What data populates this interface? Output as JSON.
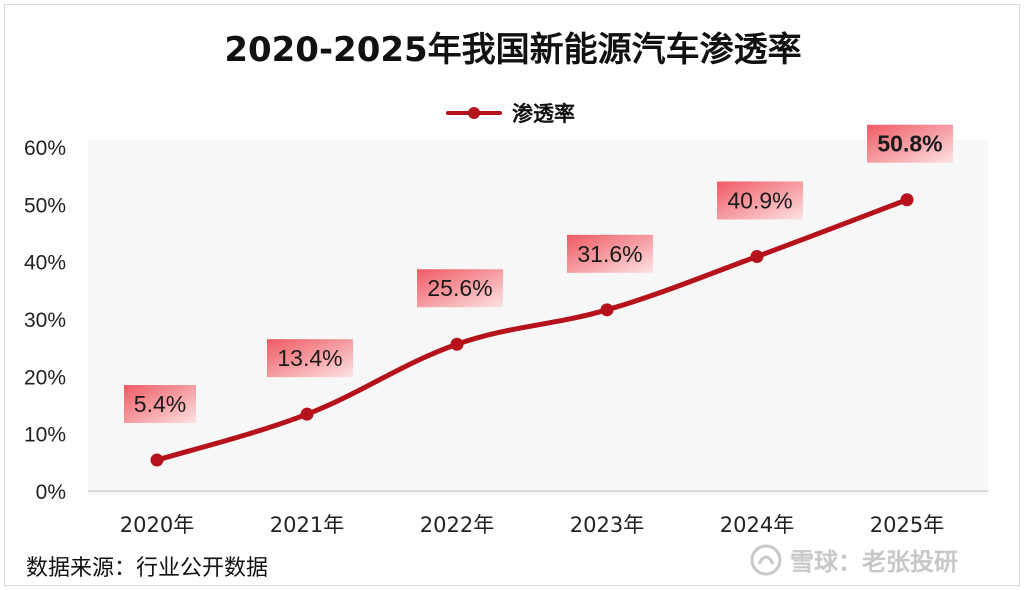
{
  "title": "2020-2025年我国新能源汽车渗透率",
  "legend": {
    "label": "渗透率"
  },
  "source": "数据来源：行业公开数据",
  "watermark": "雪球：老张投研",
  "colors": {
    "line": "#b5121b",
    "label_box": "#f8b9bd",
    "label_edge": "#f07f86"
  },
  "chart_data": {
    "type": "line",
    "title": "2020-2025年我国新能源汽车渗透率",
    "xlabel": "",
    "ylabel": "",
    "categories": [
      "2020年",
      "2021年",
      "2022年",
      "2023年",
      "2024年",
      "2025年"
    ],
    "series": [
      {
        "name": "渗透率",
        "values": [
          5.4,
          13.4,
          25.6,
          31.6,
          40.9,
          50.8
        ]
      }
    ],
    "data_labels": [
      "5.4%",
      "13.4%",
      "25.6%",
      "31.6%",
      "40.9%",
      "50.8%"
    ],
    "ylim": [
      0,
      60
    ],
    "yticks": [
      "0%",
      "10%",
      "20%",
      "30%",
      "40%",
      "50%",
      "60%"
    ],
    "grid": false,
    "legend_position": "top-center",
    "smooth": true
  }
}
